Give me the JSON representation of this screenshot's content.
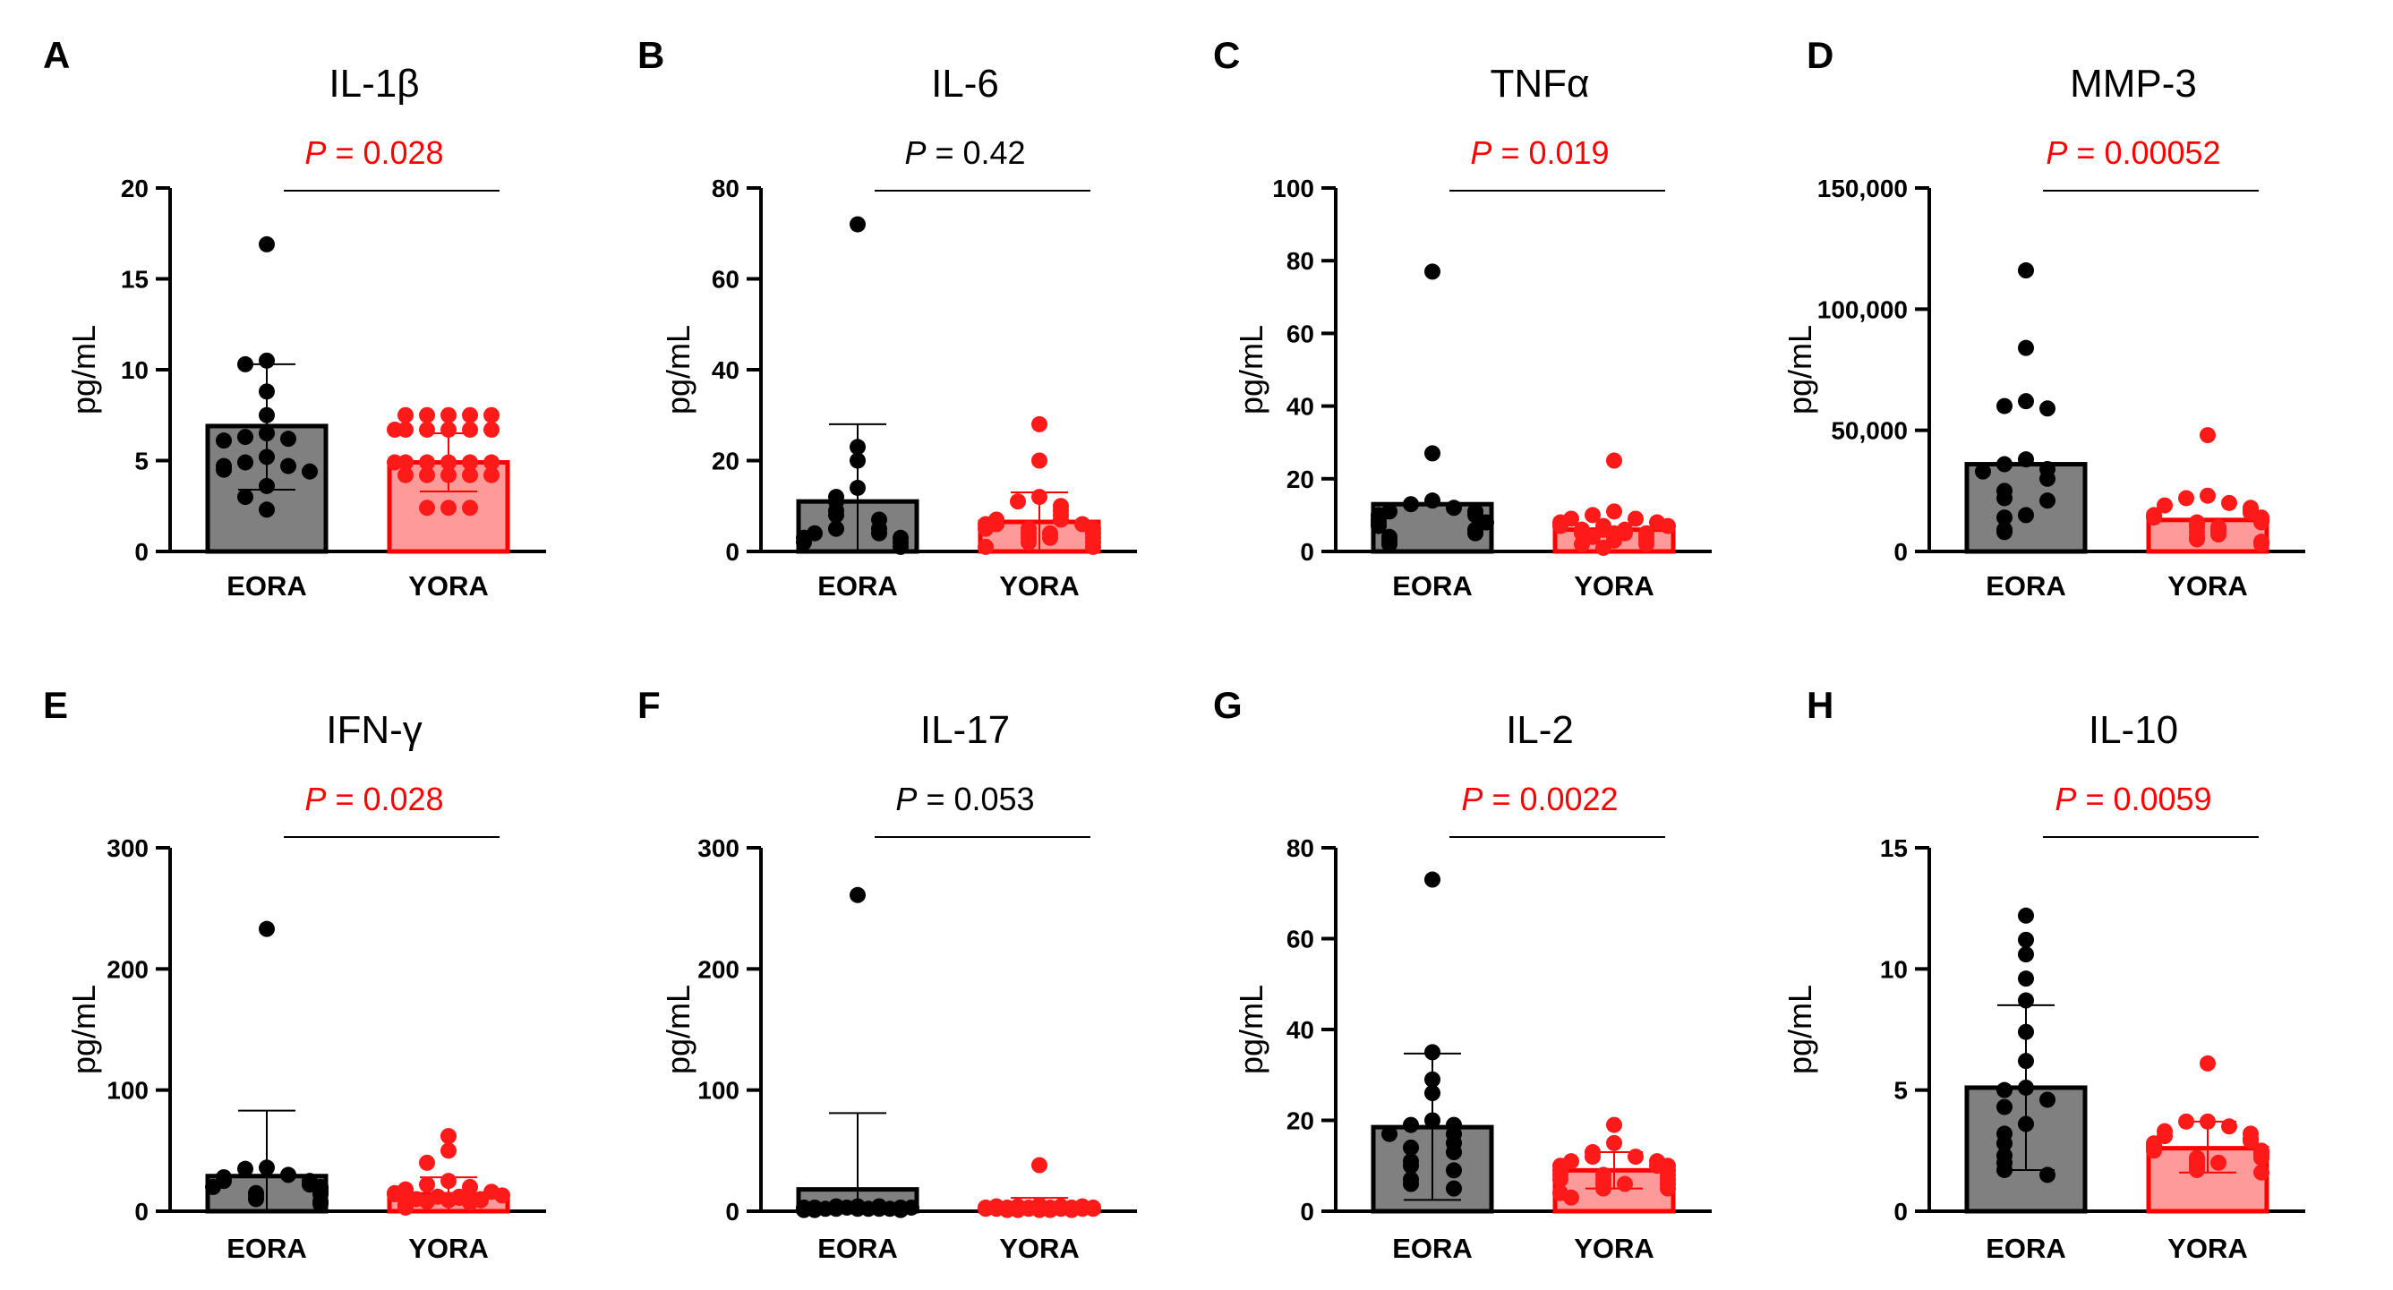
{
  "figure": {
    "y_axis_label": "pg/mL",
    "groups": [
      "EORA",
      "YORA"
    ],
    "p_prefix": "P",
    "p_separator": " = "
  },
  "colors": {
    "eora_fill": "#808080",
    "eora_edge": "#000000",
    "eora_point": "#000000",
    "yora_fill": "#ff9a9a",
    "yora_edge": "#ff0000",
    "yora_point": "#ff1a1a",
    "significant": "#ff0000",
    "not_significant": "#000000"
  },
  "chart_data": [
    {
      "panel": "A",
      "title": "IL-1β",
      "type": "bar",
      "ylabel": "pg/mL",
      "categories": [
        "EORA",
        "YORA"
      ],
      "ylim": [
        0,
        20
      ],
      "ticks": [
        0,
        5,
        10,
        15,
        20
      ],
      "tick_labels": [
        "0",
        "5",
        "10",
        "15",
        "20"
      ],
      "p_value": "0.028",
      "significant": true,
      "series": [
        {
          "name": "EORA",
          "mean": 6.9,
          "sd": [
            3.4,
            10.3
          ],
          "points": [
            16.9,
            10.5,
            10.3,
            8.8,
            7.5,
            6.5,
            6.3,
            6.2,
            6.1,
            5.2,
            4.9,
            4.7,
            4.7,
            4.5,
            4.4,
            3.6,
            3.0,
            2.3
          ]
        },
        {
          "name": "YORA",
          "mean": 4.9,
          "sd": [
            3.3,
            6.5
          ],
          "points": [
            7.5,
            7.5,
            7.5,
            7.5,
            7.5,
            6.7,
            6.7,
            6.7,
            6.7,
            6.7,
            6.7,
            4.9,
            4.9,
            4.9,
            4.9,
            4.9,
            4.9,
            4.2,
            4.2,
            4.2,
            4.2,
            4.2,
            2.4,
            2.4,
            2.4
          ]
        }
      ]
    },
    {
      "panel": "B",
      "title": "IL-6",
      "type": "bar",
      "ylabel": "pg/mL",
      "categories": [
        "EORA",
        "YORA"
      ],
      "ylim": [
        0,
        80
      ],
      "ticks": [
        0,
        20,
        40,
        60,
        80
      ],
      "tick_labels": [
        "0",
        "20",
        "40",
        "60",
        "80"
      ],
      "p_value": "0.42",
      "significant": false,
      "series": [
        {
          "name": "EORA",
          "mean": 11,
          "sd": [
            0,
            28
          ],
          "points": [
            72,
            23,
            20,
            14,
            12,
            11,
            9,
            8,
            7,
            5,
            5,
            4,
            4,
            3,
            3,
            2,
            2,
            1
          ]
        },
        {
          "name": "YORA",
          "mean": 6.5,
          "sd": [
            0,
            13
          ],
          "points": [
            28,
            20,
            12,
            11,
            10,
            9,
            8,
            7,
            7,
            6,
            6,
            6,
            5,
            5,
            5,
            4,
            4,
            4,
            3,
            3,
            3,
            2,
            2,
            1,
            1
          ]
        }
      ]
    },
    {
      "panel": "C",
      "title": "TNFα",
      "type": "bar",
      "ylabel": "pg/mL",
      "categories": [
        "EORA",
        "YORA"
      ],
      "ylim": [
        0,
        100
      ],
      "ticks": [
        0,
        20,
        40,
        60,
        80,
        100
      ],
      "tick_labels": [
        "0",
        "20",
        "40",
        "60",
        "80",
        "100"
      ],
      "p_value": "0.019",
      "significant": true,
      "series": [
        {
          "name": "EORA",
          "mean": 13,
          "sd": null,
          "points": [
            77,
            27,
            14,
            13,
            12,
            11,
            11,
            10,
            10,
            9,
            8,
            8,
            7,
            6,
            5,
            4,
            3,
            2
          ]
        },
        {
          "name": "YORA",
          "mean": 6,
          "sd": null,
          "points": [
            25,
            11,
            10,
            9,
            9,
            8,
            8,
            7,
            7,
            7,
            6,
            6,
            6,
            5,
            5,
            5,
            5,
            4,
            4,
            4,
            3,
            3,
            2,
            2,
            1
          ]
        }
      ]
    },
    {
      "panel": "D",
      "title": "MMP-3",
      "type": "bar",
      "ylabel": "pg/mL",
      "categories": [
        "EORA",
        "YORA"
      ],
      "ylim": [
        0,
        150000
      ],
      "ticks": [
        0,
        50000,
        100000,
        150000
      ],
      "tick_labels": [
        "0",
        "50,000",
        "100,000",
        "150,000"
      ],
      "p_value": "0.00052",
      "significant": true,
      "series": [
        {
          "name": "EORA",
          "mean": 36000,
          "sd": null,
          "points": [
            116000,
            84000,
            62000,
            60000,
            59000,
            38000,
            36000,
            34000,
            33000,
            30000,
            25000,
            22000,
            21000,
            15000,
            14000,
            9000,
            8000
          ]
        },
        {
          "name": "YORA",
          "mean": 13000,
          "sd": null,
          "points": [
            48000,
            23000,
            22000,
            20000,
            19000,
            18000,
            17000,
            16000,
            15000,
            14000,
            14000,
            13000,
            12000,
            12000,
            11000,
            10000,
            10000,
            9000,
            8000,
            8000,
            7000,
            6000,
            5000,
            4000,
            3000
          ]
        }
      ]
    },
    {
      "panel": "E",
      "title": "IFN-γ",
      "type": "bar",
      "ylabel": "pg/mL",
      "categories": [
        "EORA",
        "YORA"
      ],
      "ylim": [
        0,
        300
      ],
      "ticks": [
        0,
        100,
        200,
        300
      ],
      "tick_labels": [
        "0",
        "100",
        "200",
        "300"
      ],
      "p_value": "0.028",
      "significant": true,
      "series": [
        {
          "name": "EORA",
          "mean": 29,
          "sd": [
            0,
            83
          ],
          "points": [
            233,
            36,
            35,
            30,
            28,
            25,
            25,
            22,
            20,
            20,
            18,
            16,
            15,
            14,
            12,
            10,
            8,
            6
          ]
        },
        {
          "name": "YORA",
          "mean": 14,
          "sd": [
            0,
            28
          ],
          "points": [
            62,
            50,
            40,
            25,
            22,
            20,
            18,
            16,
            15,
            14,
            13,
            12,
            12,
            11,
            10,
            10,
            9,
            9,
            8,
            8,
            7,
            6,
            5,
            4,
            3
          ]
        }
      ]
    },
    {
      "panel": "F",
      "title": "IL-17",
      "type": "bar",
      "ylabel": "pg/mL",
      "categories": [
        "EORA",
        "YORA"
      ],
      "ylim": [
        0,
        300
      ],
      "ticks": [
        0,
        100,
        200,
        300
      ],
      "tick_labels": [
        "0",
        "100",
        "200",
        "300"
      ],
      "p_value": "0.053",
      "significant": false,
      "series": [
        {
          "name": "EORA",
          "mean": 18,
          "sd": [
            0,
            81
          ],
          "points": [
            261,
            4,
            4,
            4,
            3,
            3,
            3,
            3,
            3,
            2,
            2,
            2,
            2,
            2,
            2,
            1,
            1,
            1
          ]
        },
        {
          "name": "YORA",
          "mean": 4,
          "sd": [
            0,
            11
          ],
          "points": [
            38,
            5,
            4,
            4,
            4,
            4,
            3,
            3,
            3,
            3,
            3,
            3,
            3,
            2,
            2,
            2,
            2,
            2,
            2,
            2,
            1,
            1,
            1,
            1,
            1
          ]
        }
      ]
    },
    {
      "panel": "G",
      "title": "IL-2",
      "type": "bar",
      "ylabel": "pg/mL",
      "categories": [
        "EORA",
        "YORA"
      ],
      "ylim": [
        0,
        80
      ],
      "ticks": [
        0,
        20,
        40,
        60,
        80
      ],
      "tick_labels": [
        "0",
        "20",
        "40",
        "60",
        "80"
      ],
      "p_value": "0.0022",
      "significant": true,
      "series": [
        {
          "name": "EORA",
          "mean": 18.5,
          "sd": [
            2.5,
            34.7
          ],
          "points": [
            73,
            35,
            29,
            26,
            20,
            19,
            19,
            17,
            17,
            15,
            14,
            13,
            11,
            10,
            9,
            7,
            6,
            5
          ]
        },
        {
          "name": "YORA",
          "mean": 9,
          "sd": [
            5,
            13
          ],
          "points": [
            19,
            15,
            13,
            12,
            12,
            11,
            11,
            10,
            10,
            10,
            9,
            9,
            8,
            8,
            8,
            7,
            7,
            7,
            6,
            6,
            6,
            5,
            5,
            4,
            3
          ]
        }
      ]
    },
    {
      "panel": "H",
      "title": "IL-10",
      "type": "bar",
      "ylabel": "pg/mL",
      "categories": [
        "EORA",
        "YORA"
      ],
      "ylim": [
        0,
        15
      ],
      "ticks": [
        0,
        5,
        10,
        15
      ],
      "tick_labels": [
        "0",
        "5",
        "10",
        "15"
      ],
      "p_value": "0.0059",
      "significant": true,
      "series": [
        {
          "name": "EORA",
          "mean": 5.1,
          "sd": [
            1.7,
            8.5
          ],
          "points": [
            12.2,
            11.2,
            10.6,
            9.6,
            8.7,
            7.4,
            6.2,
            5.1,
            5.0,
            4.6,
            4.3,
            3.6,
            3.2,
            2.8,
            2.3,
            2.0,
            1.7,
            1.5
          ]
        },
        {
          "name": "YORA",
          "mean": 2.6,
          "sd": [
            1.6,
            3.7
          ],
          "points": [
            6.1,
            3.7,
            3.7,
            3.5,
            3.3,
            3.2,
            3.1,
            3.0,
            2.9,
            2.8,
            2.7,
            2.6,
            2.5,
            2.5,
            2.4,
            2.3,
            2.2,
            2.2,
            2.1,
            2.0,
            2.0,
            1.9,
            1.8,
            1.7,
            1.6
          ]
        }
      ]
    }
  ]
}
